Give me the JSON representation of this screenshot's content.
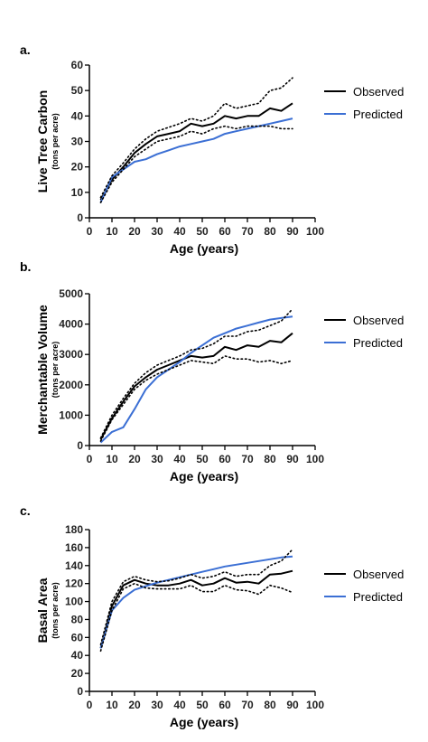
{
  "chart_data": [
    {
      "panel_label": "a.",
      "type": "line",
      "ylabel": "Live Tree Carbon",
      "ylabel_units": "(tons per acre)",
      "xlabel": "Age (years)",
      "xlim": [
        0,
        100
      ],
      "ylim": [
        0,
        60
      ],
      "xticks": [
        0,
        10,
        20,
        30,
        40,
        50,
        60,
        70,
        80,
        90,
        100
      ],
      "yticks": [
        0,
        10,
        20,
        30,
        40,
        50,
        60
      ],
      "legend_position": "right",
      "grid": false,
      "series": [
        {
          "name": "Observed",
          "color": "#000000",
          "style": "solid",
          "x": [
            5,
            10,
            15,
            20,
            25,
            30,
            35,
            40,
            45,
            50,
            55,
            60,
            65,
            70,
            75,
            80,
            85,
            90
          ],
          "y": [
            7,
            15,
            20,
            25.5,
            29,
            32,
            33,
            34,
            37,
            36,
            37,
            40,
            39,
            40,
            40,
            43,
            42,
            45
          ]
        },
        {
          "name": "Predicted",
          "color": "#3b6fd4",
          "style": "solid",
          "x": [
            5,
            10,
            15,
            20,
            25,
            30,
            35,
            40,
            45,
            50,
            55,
            60,
            65,
            70,
            75,
            80,
            85,
            90
          ],
          "y": [
            6,
            16,
            19,
            22,
            23,
            25,
            26.5,
            28,
            29,
            30,
            31,
            33,
            34,
            35,
            36,
            37,
            38,
            39
          ]
        },
        {
          "name": "",
          "color": "#000000",
          "style": "dotted",
          "x": [
            5,
            10,
            15,
            20,
            25,
            30,
            35,
            40,
            45,
            50,
            55,
            60,
            65,
            70,
            75,
            80,
            85,
            90
          ],
          "y": [
            8,
            16.5,
            21.5,
            27,
            31,
            34,
            35.5,
            37,
            39,
            38,
            40,
            45,
            43,
            44,
            45,
            50,
            51,
            55
          ]
        },
        {
          "name": "",
          "color": "#000000",
          "style": "dotted",
          "x": [
            5,
            10,
            15,
            20,
            25,
            30,
            35,
            40,
            45,
            50,
            55,
            60,
            65,
            70,
            75,
            80,
            85,
            90
          ],
          "y": [
            6,
            14,
            19,
            24,
            27,
            30,
            31,
            32,
            34,
            33,
            35,
            36,
            35,
            36,
            36,
            36,
            35,
            35
          ]
        }
      ]
    },
    {
      "panel_label": "b.",
      "type": "line",
      "ylabel": "Merchantable Volume",
      "ylabel_units": "(tons per acre)",
      "xlabel": "Age (years)",
      "xlim": [
        0,
        100
      ],
      "ylim": [
        0,
        5000
      ],
      "xticks": [
        0,
        10,
        20,
        30,
        40,
        50,
        60,
        70,
        80,
        90,
        100
      ],
      "yticks": [
        0,
        1000,
        2000,
        3000,
        4000,
        5000
      ],
      "legend_position": "right",
      "grid": false,
      "series": [
        {
          "name": "Observed",
          "color": "#000000",
          "style": "solid",
          "x": [
            5,
            10,
            15,
            20,
            25,
            30,
            35,
            40,
            45,
            50,
            55,
            60,
            65,
            70,
            75,
            80,
            85,
            90
          ],
          "y": [
            200,
            900,
            1450,
            1950,
            2250,
            2500,
            2650,
            2800,
            2950,
            2900,
            2950,
            3250,
            3150,
            3300,
            3250,
            3450,
            3400,
            3700
          ]
        },
        {
          "name": "Predicted",
          "color": "#3b6fd4",
          "style": "solid",
          "x": [
            5,
            10,
            15,
            20,
            25,
            30,
            35,
            40,
            45,
            50,
            55,
            60,
            65,
            70,
            75,
            80,
            85,
            90
          ],
          "y": [
            100,
            450,
            600,
            1200,
            1850,
            2250,
            2500,
            2750,
            3050,
            3300,
            3550,
            3700,
            3850,
            3950,
            4050,
            4150,
            4200,
            4250
          ]
        },
        {
          "name": "",
          "color": "#000000",
          "style": "dotted",
          "x": [
            5,
            10,
            15,
            20,
            25,
            30,
            35,
            40,
            45,
            50,
            55,
            60,
            65,
            70,
            75,
            80,
            85,
            90
          ],
          "y": [
            250,
            1000,
            1550,
            2050,
            2400,
            2650,
            2800,
            2950,
            3150,
            3200,
            3350,
            3600,
            3600,
            3750,
            3800,
            3950,
            4100,
            4500
          ]
        },
        {
          "name": "",
          "color": "#000000",
          "style": "dotted",
          "x": [
            5,
            10,
            15,
            20,
            25,
            30,
            35,
            40,
            45,
            50,
            55,
            60,
            65,
            70,
            75,
            80,
            85,
            90
          ],
          "y": [
            150,
            850,
            1350,
            1850,
            2150,
            2350,
            2500,
            2650,
            2800,
            2750,
            2700,
            2950,
            2850,
            2850,
            2750,
            2800,
            2700,
            2800
          ]
        }
      ]
    },
    {
      "panel_label": "c.",
      "type": "line",
      "ylabel": "Basal Area",
      "ylabel_units": "(tons per acre)",
      "xlabel": "Age (years)",
      "xlim": [
        0,
        100
      ],
      "ylim": [
        0,
        180
      ],
      "xticks": [
        0,
        10,
        20,
        30,
        40,
        50,
        60,
        70,
        80,
        90,
        100
      ],
      "yticks": [
        0,
        20,
        40,
        60,
        80,
        100,
        120,
        140,
        160,
        180
      ],
      "legend_position": "right",
      "grid": false,
      "series": [
        {
          "name": "Observed",
          "color": "#000000",
          "style": "solid",
          "x": [
            5,
            10,
            15,
            20,
            25,
            30,
            35,
            40,
            45,
            50,
            55,
            60,
            65,
            70,
            75,
            80,
            85,
            90
          ],
          "y": [
            48,
            95,
            118,
            124,
            120,
            118,
            118,
            120,
            124,
            118,
            120,
            126,
            121,
            122,
            120,
            130,
            131,
            134
          ]
        },
        {
          "name": "Predicted",
          "color": "#3b6fd4",
          "style": "solid",
          "x": [
            5,
            10,
            15,
            20,
            25,
            30,
            35,
            40,
            45,
            50,
            55,
            60,
            65,
            70,
            75,
            80,
            85,
            90
          ],
          "y": [
            48,
            90,
            104,
            113,
            117,
            121,
            124,
            127,
            130,
            133,
            136,
            139,
            141,
            143,
            145,
            147,
            149,
            150
          ]
        },
        {
          "name": "",
          "color": "#000000",
          "style": "dotted",
          "x": [
            5,
            10,
            15,
            20,
            25,
            30,
            35,
            40,
            45,
            50,
            55,
            60,
            65,
            70,
            75,
            80,
            85,
            90
          ],
          "y": [
            52,
            100,
            122,
            128,
            124,
            122,
            123,
            126,
            130,
            126,
            128,
            133,
            128,
            130,
            130,
            140,
            145,
            158
          ]
        },
        {
          "name": "",
          "color": "#000000",
          "style": "dotted",
          "x": [
            5,
            10,
            15,
            20,
            25,
            30,
            35,
            40,
            45,
            50,
            55,
            60,
            65,
            70,
            75,
            80,
            85,
            90
          ],
          "y": [
            45,
            90,
            114,
            120,
            115,
            114,
            114,
            114,
            118,
            111,
            111,
            118,
            113,
            112,
            108,
            118,
            115,
            110
          ]
        }
      ]
    }
  ]
}
